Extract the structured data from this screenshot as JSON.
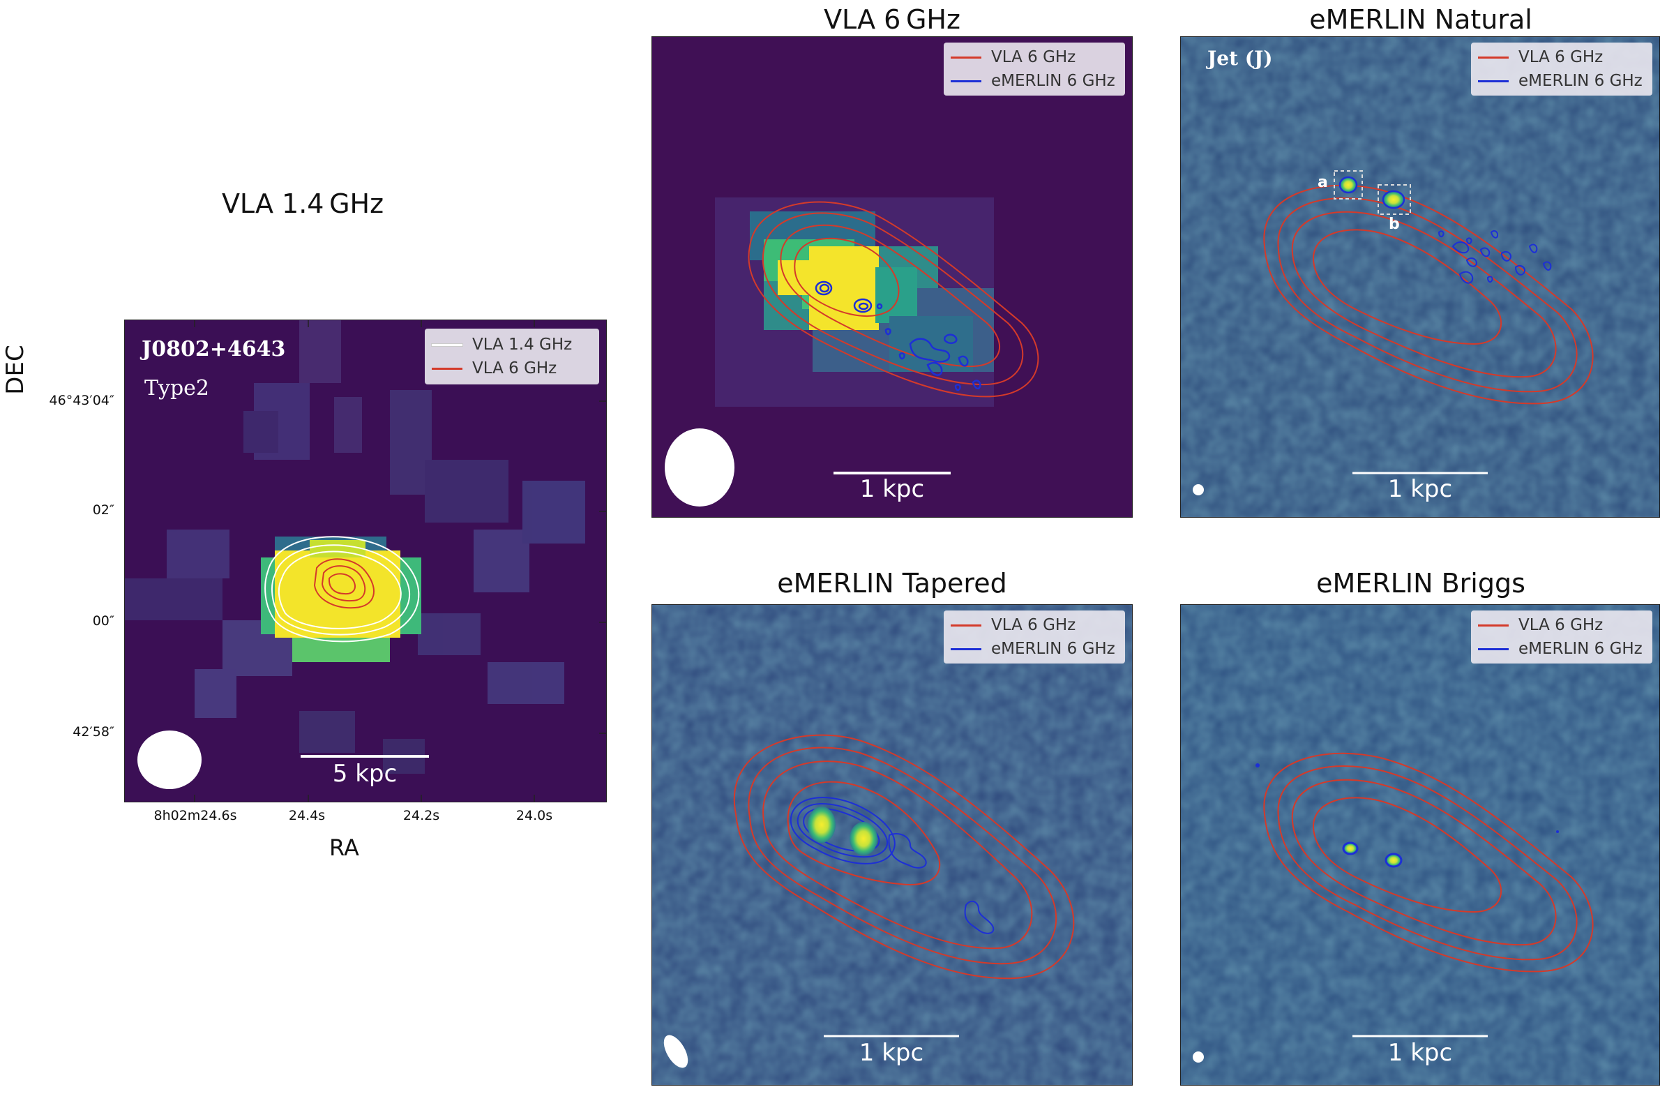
{
  "figure": {
    "colors": {
      "vla14_contour": "#ffffff",
      "vla6_contour": "#d43a2a",
      "emerlin_contour": "#1d2fd6",
      "viridis_dark": "#3f0b57",
      "viridis_mid": "#2c7b8e",
      "viridis_bright": "#f5e528",
      "noise_bg": "#31557e"
    },
    "panels": [
      {
        "key": "vla14",
        "title": "VLA 1.4 GHz",
        "source_name": "J0802+4643",
        "source_type": "Type2",
        "legend": [
          "VLA 1.4 GHz",
          "VLA 6 GHz"
        ],
        "scalebar": "5 kpc",
        "x_axis_label": "RA",
        "y_axis_label": "DEC",
        "x_ticks": [
          "8h02m24.6s",
          "24.4s",
          "24.2s",
          "24.0s"
        ],
        "y_ticks": [
          "46°43′04″",
          "02″",
          "00″",
          "42′58″"
        ]
      },
      {
        "key": "vla6",
        "title": "VLA 6 GHz",
        "legend": [
          "VLA 6 GHz",
          "eMERLIN 6 GHz"
        ],
        "scalebar": "1 kpc"
      },
      {
        "key": "natural",
        "title": "eMERLIN Natural",
        "annotation": "Jet (J)",
        "component_labels": [
          "a",
          "b"
        ],
        "legend": [
          "VLA 6 GHz",
          "eMERLIN 6 GHz"
        ],
        "scalebar": "1 kpc"
      },
      {
        "key": "tapered",
        "title": "eMERLIN Tapered",
        "legend": [
          "VLA 6 GHz",
          "eMERLIN 6 GHz"
        ],
        "scalebar": "1 kpc"
      },
      {
        "key": "briggs",
        "title": "eMERLIN Briggs",
        "legend": [
          "VLA 6 GHz",
          "eMERLIN 6 GHz"
        ],
        "scalebar": "1 kpc"
      }
    ]
  }
}
